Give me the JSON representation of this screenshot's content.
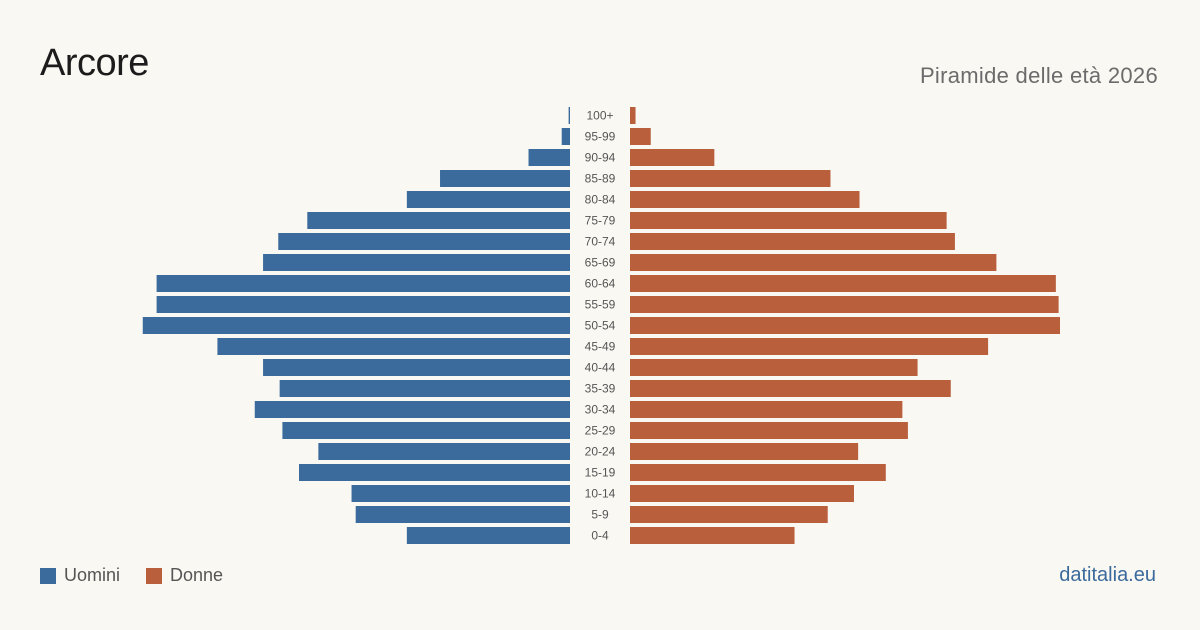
{
  "header": {
    "title": "Arcore",
    "subtitle": "Piramide delle età 2026"
  },
  "legend": {
    "men_label": "Uomini",
    "women_label": "Donne"
  },
  "footer": {
    "credit": "datitalia.eu"
  },
  "colors": {
    "men": "#3b6a9c",
    "women": "#b95f3c",
    "background": "#faf8f3"
  },
  "chart_data": {
    "type": "bar",
    "orientation": "horizontal-pyramid",
    "categories": [
      "100+",
      "95-99",
      "90-94",
      "85-89",
      "80-84",
      "75-79",
      "70-74",
      "65-69",
      "60-64",
      "55-59",
      "50-54",
      "45-49",
      "40-44",
      "35-39",
      "30-34",
      "25-29",
      "20-24",
      "15-19",
      "10-14",
      "5-9",
      "0-4"
    ],
    "series": [
      {
        "name": "Uomini",
        "values": [
          1,
          6,
          30,
          94,
          118,
          190,
          211,
          222,
          299,
          299,
          309,
          255,
          222,
          210,
          228,
          208,
          182,
          196,
          158,
          155,
          118
        ]
      },
      {
        "name": "Donne",
        "values": [
          4,
          15,
          61,
          145,
          166,
          229,
          235,
          265,
          308,
          310,
          311,
          259,
          208,
          232,
          197,
          201,
          165,
          185,
          162,
          143,
          119
        ]
      }
    ],
    "grid": false,
    "legend_position": "bottom-left"
  }
}
